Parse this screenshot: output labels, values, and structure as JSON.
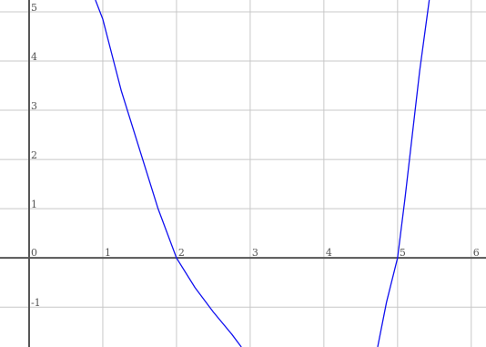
{
  "chart_data": {
    "type": "line",
    "x": [
      0.9,
      1,
      1.25,
      1.5,
      1.75,
      2,
      2.25,
      2.5,
      2.75,
      2.88,
      3.8,
      4.73,
      4.85,
      5,
      5.1,
      5.2,
      5.3,
      5.43
    ],
    "series": [
      {
        "color": "#1010f0",
        "values": [
          5.24,
          4.85,
          3.4,
          2.2,
          1.0,
          0,
          -0.6,
          -1.1,
          -1.55,
          -1.81,
          null,
          -1.81,
          -0.9,
          0,
          1.2,
          2.5,
          3.8,
          5.24
        ]
      }
    ],
    "xlim": [
      -0.395,
      6.2
    ],
    "ylim": [
      -1.81,
      5.24
    ],
    "xticks": [
      0,
      1,
      2,
      3,
      4,
      5,
      6
    ],
    "yticks": [
      -1,
      1,
      2,
      3,
      4,
      5
    ],
    "grid": true
  }
}
